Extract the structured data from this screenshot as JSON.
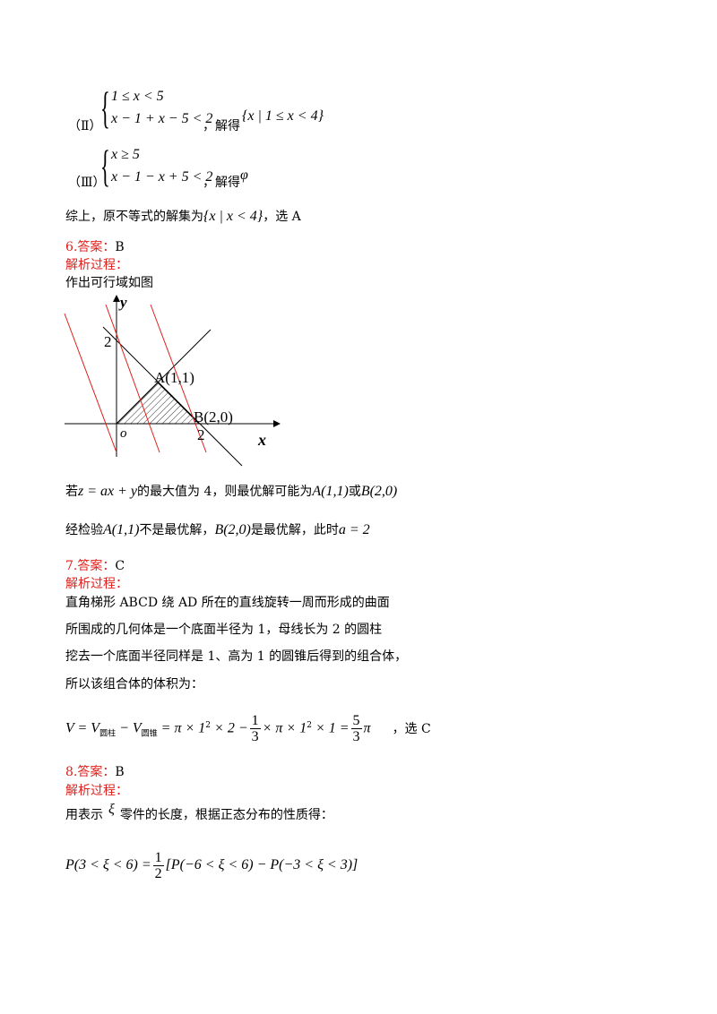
{
  "case2": {
    "label": "（Ⅱ）",
    "system": [
      "1 ≤ x < 5",
      "x − 1 + x − 5 < 2"
    ],
    "after": "，解得",
    "result": "{x | 1 ≤ x < 4}"
  },
  "case3": {
    "label": "（Ⅲ）",
    "system": [
      "x ≥ 5",
      "x − 1 − x + 5 < 2"
    ],
    "after": "，解得",
    "result": "φ"
  },
  "summary": {
    "text": "综上，原不等式的解集为",
    "set": "{x | x < 4}",
    "after": "，选 A"
  },
  "q6": {
    "number": "6.",
    "answer_label": "答案：",
    "answer": "B",
    "analysis_label": "解析过程：",
    "intro": "作出可行域如图",
    "figure": {
      "y_label": "y",
      "y_tick": "2",
      "point_a": "A(1,1)",
      "point_b": "B(2,0)",
      "origin": "o",
      "x_tick": "2",
      "x_label": "x"
    },
    "line1": [
      "若",
      "z = ax + y",
      "的最大值为 4，则最优解可能为",
      "A(1,1)",
      "或",
      "B(2,0)"
    ],
    "line2": [
      "经检验",
      "A(1,1)",
      "不是最优解，",
      "B(2,0)",
      "是最优解，此时",
      "a = 2"
    ]
  },
  "q7": {
    "number": "7.",
    "answer_label": "答案：",
    "answer": "C",
    "analysis_label": "解析过程：",
    "lines": [
      "直角梯形 ABCD 绕 AD 所在的直线旋转一周而形成的曲面",
      "所围成的几何体是一个底面半径为 1，母线长为 2 的圆柱",
      "挖去一个底面半径同样是 1、高为 1 的圆锥后得到的组合体，",
      "所以该组合体的体积为："
    ],
    "formula": [
      "V = V",
      "圆柱",
      " − V",
      "圆锥",
      " = π × 1",
      "2",
      " × 2 −",
      "1",
      "3",
      "× π × 1",
      "2",
      " × 1 =",
      "5",
      "3",
      "π",
      "，选 C"
    ]
  },
  "q8": {
    "number": "8.",
    "answer_label": "答案：",
    "answer": "B",
    "analysis_label": "解析过程：",
    "line": [
      "用表示",
      "ξ",
      "零件的长度，根据正态分布的性质得："
    ],
    "formula": [
      "P(3 < ξ < 6) =",
      "1",
      "2",
      "[P(−6 < ξ < 6) − P(−3 < ξ < 3)]"
    ]
  }
}
